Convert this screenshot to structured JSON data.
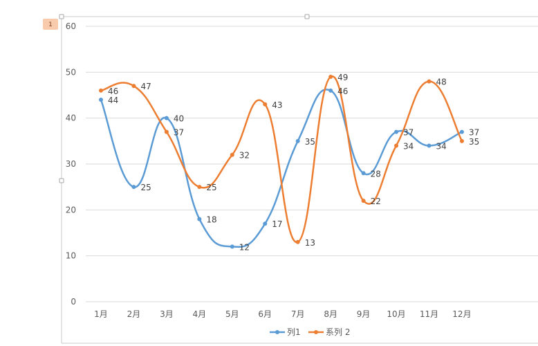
{
  "page_marker": "1",
  "chart_data": {
    "type": "line",
    "smooth": true,
    "categories": [
      "1月",
      "2月",
      "3月",
      "4月",
      "5月",
      "6月",
      "7月",
      "8月",
      "9月",
      "10月",
      "11月",
      "12月"
    ],
    "series": [
      {
        "name": "列1",
        "color": "#5b9bd5",
        "values": [
          44,
          25,
          40,
          18,
          12,
          17,
          35,
          46,
          28,
          37,
          34,
          37
        ]
      },
      {
        "name": "系列 2",
        "color": "#ed7d31",
        "values": [
          46,
          47,
          37,
          25,
          32,
          43,
          13,
          49,
          22,
          34,
          48,
          35
        ]
      }
    ],
    "y_ticks": [
      "0",
      "10",
      "20",
      "30",
      "40",
      "50",
      "60"
    ],
    "ylim": [
      0,
      60
    ],
    "grid": true,
    "data_labels": true,
    "legend_position": "bottom"
  }
}
